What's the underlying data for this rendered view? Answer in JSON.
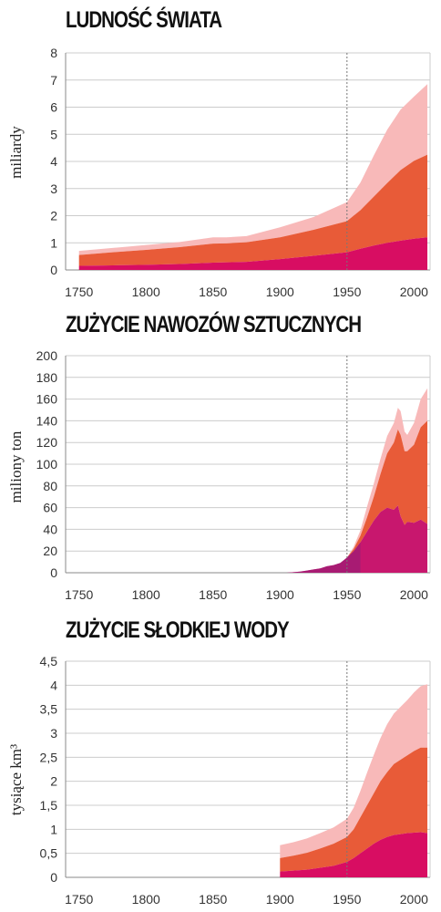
{
  "colors": {
    "light": "#f8b9b9",
    "mid": "#e85b38",
    "dark": "#d80d62",
    "fert_dark": "#c8176e",
    "fert_dark_early": "#8e1f78",
    "grid": "#cccccc",
    "axis": "#888888",
    "guide": "#777777"
  },
  "chart_data": [
    {
      "type": "area",
      "title": "LUDNOŚĆ ŚWIATA",
      "ylabel": "miliardy",
      "xlabel": "",
      "xlim": [
        1740,
        2012
      ],
      "ylim": [
        0,
        8
      ],
      "yticks": [
        "0",
        "1",
        "2",
        "3",
        "4",
        "5",
        "6",
        "7",
        "8"
      ],
      "ytick_values": [
        0,
        1,
        2,
        3,
        4,
        5,
        6,
        7,
        8
      ],
      "xticks": [
        "1750",
        "1800",
        "1850",
        "1900",
        "1950",
        "2000"
      ],
      "xtick_values": [
        1750,
        1800,
        1850,
        1900,
        1950,
        2000
      ],
      "guide_x": 1950,
      "grid": true,
      "stacked": true,
      "series": [
        {
          "x": [
            1750,
            1775,
            1800,
            1825,
            1850,
            1860,
            1875,
            1900,
            1925,
            1950,
            1960,
            1970,
            1980,
            1990,
            2000,
            2010
          ],
          "y": [
            0.15,
            0.17,
            0.19,
            0.22,
            0.27,
            0.28,
            0.3,
            0.4,
            0.52,
            0.65,
            0.78,
            0.9,
            1.0,
            1.08,
            1.15,
            1.2
          ]
        },
        {
          "x": [
            1750,
            1775,
            1800,
            1825,
            1850,
            1860,
            1875,
            1900,
            1925,
            1950,
            1960,
            1970,
            1980,
            1990,
            2000,
            2010
          ],
          "y": [
            0.4,
            0.48,
            0.55,
            0.62,
            0.7,
            0.7,
            0.72,
            0.8,
            0.96,
            1.15,
            1.42,
            1.8,
            2.2,
            2.6,
            2.87,
            3.05
          ]
        },
        {
          "x": [
            1750,
            1775,
            1800,
            1825,
            1850,
            1860,
            1875,
            1900,
            1925,
            1950,
            1960,
            1970,
            1980,
            1990,
            2000,
            2010
          ],
          "y": [
            0.15,
            0.16,
            0.18,
            0.19,
            0.23,
            0.22,
            0.23,
            0.37,
            0.47,
            0.7,
            1.02,
            1.52,
            1.97,
            2.23,
            2.37,
            2.6
          ]
        }
      ]
    },
    {
      "type": "area",
      "title": "ZUŻYCIE NAWOZÓW SZTUCZNYCH",
      "ylabel": "miliony ton",
      "xlabel": "",
      "xlim": [
        1740,
        2012
      ],
      "ylim": [
        0,
        200
      ],
      "yticks": [
        "0",
        "20",
        "40",
        "60",
        "80",
        "100",
        "120",
        "140",
        "160",
        "180",
        "200"
      ],
      "ytick_values": [
        0,
        20,
        40,
        60,
        80,
        100,
        120,
        140,
        160,
        180,
        200
      ],
      "xticks": [
        "1750",
        "1800",
        "1850",
        "1900",
        "1950",
        "2000"
      ],
      "xtick_values": [
        1750,
        1800,
        1850,
        1900,
        1950,
        2000
      ],
      "guide_x": 1950,
      "grid": true,
      "stacked": true,
      "series": [
        {
          "x": [
            1905,
            1915,
            1920,
            1925,
            1930,
            1935,
            1940,
            1945,
            1950,
            1955,
            1960,
            1965,
            1970,
            1975,
            1980,
            1985,
            1988,
            1990,
            1993,
            1995,
            2000,
            2005,
            2010
          ],
          "y": [
            0,
            1,
            2,
            3,
            4,
            6,
            7,
            9,
            14,
            20,
            28,
            38,
            48,
            56,
            60,
            58,
            62,
            52,
            44,
            47,
            46,
            49,
            45
          ]
        },
        {
          "x": [
            1905,
            1930,
            1940,
            1950,
            1955,
            1960,
            1965,
            1970,
            1975,
            1980,
            1985,
            1988,
            1990,
            1993,
            1995,
            2000,
            2005,
            2010
          ],
          "y": [
            0,
            0,
            0,
            0,
            2,
            6,
            13,
            22,
            35,
            50,
            62,
            70,
            75,
            68,
            65,
            72,
            85,
            95
          ]
        },
        {
          "x": [
            1905,
            1930,
            1940,
            1950,
            1955,
            1960,
            1965,
            1970,
            1975,
            1980,
            1985,
            1988,
            1990,
            1993,
            1995,
            2000,
            2005,
            2010
          ],
          "y": [
            0,
            0,
            0,
            0,
            2,
            5,
            10,
            12,
            14,
            16,
            18,
            20,
            22,
            18,
            15,
            20,
            26,
            30
          ]
        }
      ]
    },
    {
      "type": "area",
      "title": "ZUŻYCIE SŁODKIEJ WODY",
      "ylabel": "tysiące km³",
      "xlabel": "",
      "xlim": [
        1740,
        2012
      ],
      "ylim": [
        0,
        4.5
      ],
      "yticks": [
        "0",
        "0,5",
        "1",
        "1,5",
        "2",
        "2,5",
        "3",
        "3,5",
        "4",
        "4,5"
      ],
      "ytick_values": [
        0,
        0.5,
        1,
        1.5,
        2,
        2.5,
        3,
        3.5,
        4,
        4.5
      ],
      "xticks": [
        "1750",
        "1800",
        "1850",
        "1900",
        "1950",
        "2000"
      ],
      "xtick_values": [
        1750,
        1800,
        1850,
        1900,
        1950,
        2000
      ],
      "guide_x": 1950,
      "grid": true,
      "stacked": true,
      "series": [
        {
          "x": [
            1900,
            1910,
            1920,
            1930,
            1940,
            1950,
            1955,
            1960,
            1965,
            1970,
            1975,
            1980,
            1985,
            1990,
            1995,
            2000,
            2005,
            2010
          ],
          "y": [
            0.12,
            0.14,
            0.16,
            0.2,
            0.24,
            0.32,
            0.4,
            0.5,
            0.6,
            0.7,
            0.78,
            0.84,
            0.88,
            0.9,
            0.92,
            0.93,
            0.94,
            0.92
          ]
        },
        {
          "x": [
            1900,
            1910,
            1920,
            1930,
            1940,
            1950,
            1955,
            1960,
            1965,
            1970,
            1975,
            1980,
            1985,
            1990,
            1995,
            2000,
            2005,
            2010
          ],
          "y": [
            0.28,
            0.31,
            0.35,
            0.4,
            0.46,
            0.52,
            0.6,
            0.75,
            0.9,
            1.05,
            1.22,
            1.35,
            1.48,
            1.55,
            1.62,
            1.7,
            1.76,
            1.78
          ]
        },
        {
          "x": [
            1900,
            1910,
            1920,
            1930,
            1940,
            1950,
            1955,
            1960,
            1965,
            1970,
            1975,
            1980,
            1985,
            1990,
            1995,
            2000,
            2005,
            2010
          ],
          "y": [
            0.27,
            0.28,
            0.3,
            0.32,
            0.34,
            0.38,
            0.45,
            0.55,
            0.68,
            0.8,
            0.9,
            1.0,
            1.05,
            1.1,
            1.15,
            1.22,
            1.28,
            1.32
          ]
        }
      ]
    }
  ]
}
